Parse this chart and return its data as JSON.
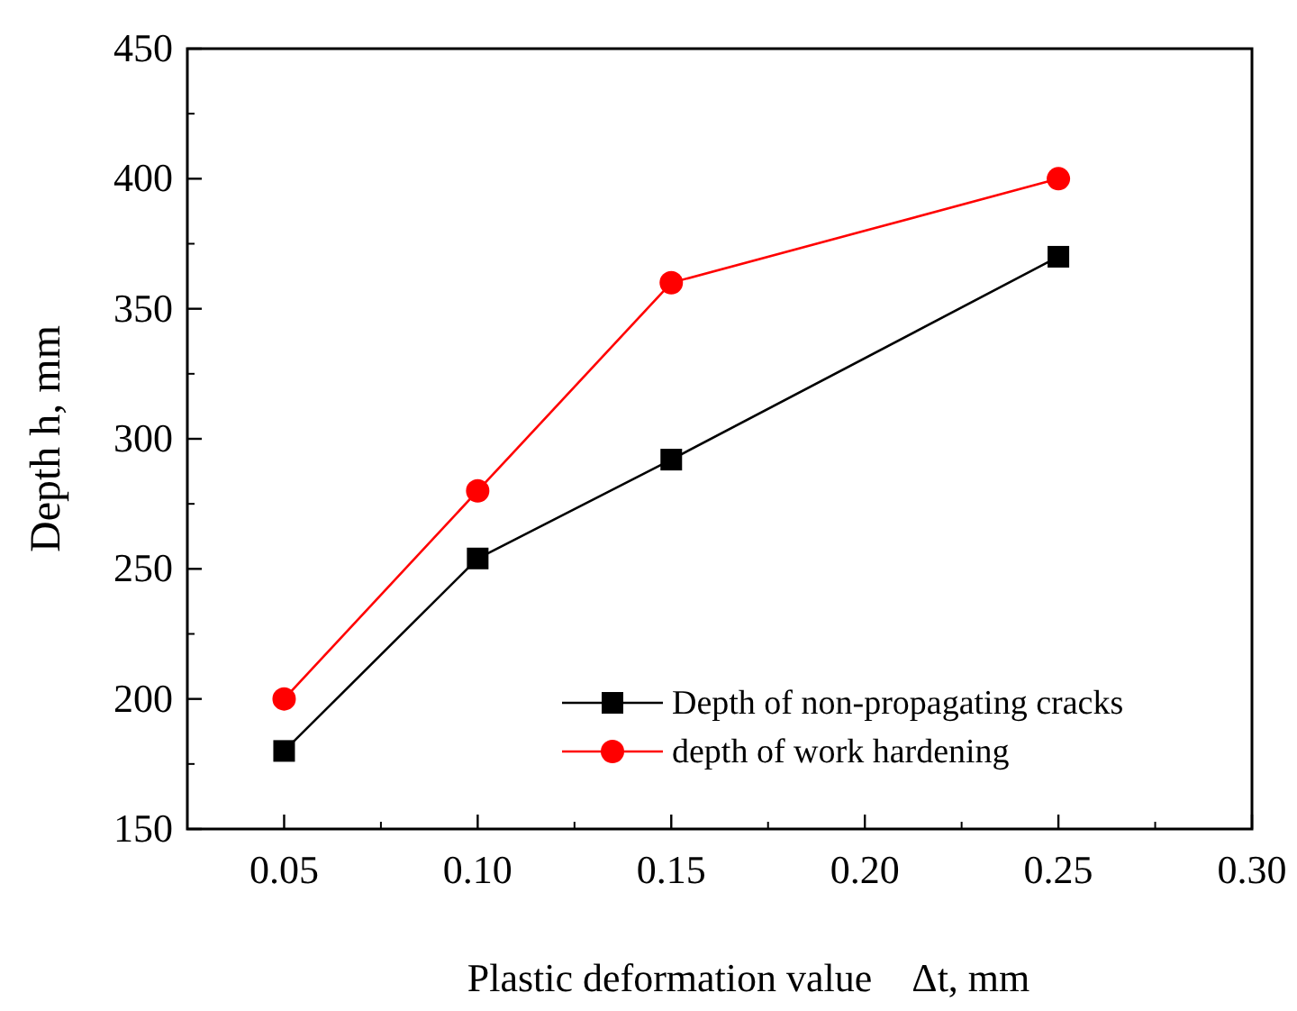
{
  "chart_data": {
    "type": "line",
    "xlabel": "Plastic deformation value    Δt, mm",
    "ylabel": "Depth h, mm",
    "x": [
      0.05,
      0.1,
      0.15,
      0.25
    ],
    "series": [
      {
        "name": "Depth of non-propagating cracks",
        "color": "#000000",
        "marker": "square",
        "values": [
          180,
          254,
          292,
          370
        ]
      },
      {
        "name": "depth of work hardening",
        "color": "#ff0000",
        "marker": "circle",
        "values": [
          200,
          280,
          360,
          400
        ]
      }
    ],
    "xlim": [
      0.025,
      0.3
    ],
    "xticks": [
      {
        "value": 0.05,
        "label": "0.05"
      },
      {
        "value": 0.1,
        "label": "0.10"
      },
      {
        "value": 0.15,
        "label": "0.15"
      },
      {
        "value": 0.2,
        "label": "0.20"
      },
      {
        "value": 0.25,
        "label": "0.25"
      },
      {
        "value": 0.3,
        "label": "0.30"
      }
    ],
    "ylim": [
      150,
      450
    ],
    "yticks": [
      150,
      200,
      250,
      300,
      350,
      400,
      450
    ],
    "legend": "bottom right",
    "grid": false,
    "line_style": "solid"
  }
}
